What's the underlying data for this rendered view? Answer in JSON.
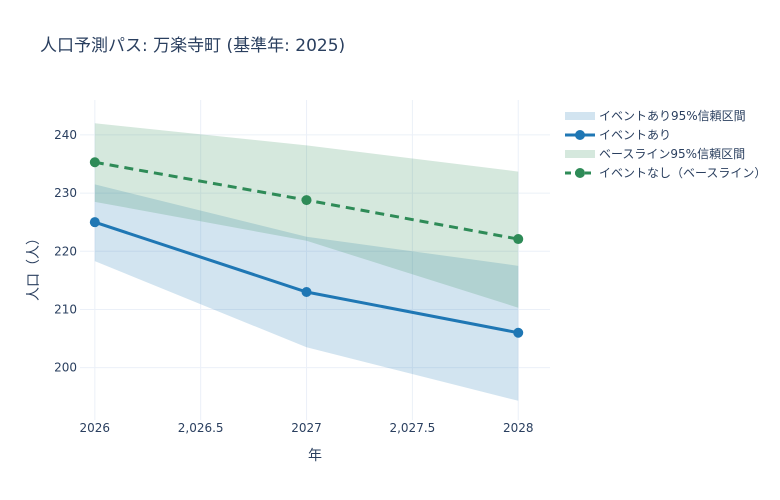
{
  "chart_data": {
    "type": "line",
    "title": "人口予測パス: 万楽寺町 (基準年: 2025)",
    "xlabel": "年",
    "ylabel": "人口（人）",
    "x": [
      2026,
      2027,
      2028
    ],
    "xlim": [
      2025.93,
      2028.15
    ],
    "ylim": [
      191,
      246
    ],
    "x_ticks": [
      2026,
      2026.5,
      2027,
      2027.5,
      2028
    ],
    "x_tick_labels": [
      "2026",
      "2,026.5",
      "2027",
      "2,027.5",
      "2028"
    ],
    "y_ticks": [
      200,
      210,
      220,
      230,
      240
    ],
    "y_tick_labels": [
      "200",
      "210",
      "220",
      "230",
      "240"
    ],
    "grid": true,
    "legend_position": "top-right",
    "series": [
      {
        "name": "イベントあり95%信頼区間",
        "kind": "band",
        "upper": [
          231.5,
          222.5,
          217.5
        ],
        "lower": [
          218.3,
          203.5,
          194.3
        ],
        "color": "#1f77b4"
      },
      {
        "name": "イベントあり",
        "kind": "line",
        "values": [
          225,
          213,
          206
        ],
        "color": "#1f77b4",
        "dash": "solid"
      },
      {
        "name": "ベースライン95%信頼区間",
        "kind": "band",
        "upper": [
          242,
          238.2,
          233.7
        ],
        "lower": [
          228.5,
          221.8,
          210.3
        ],
        "color": "#2e8b57"
      },
      {
        "name": "イベントなし（ベースライン）",
        "kind": "line",
        "values": [
          235.3,
          228.8,
          222.1
        ],
        "color": "#2e8b57",
        "dash": "dash"
      }
    ]
  }
}
